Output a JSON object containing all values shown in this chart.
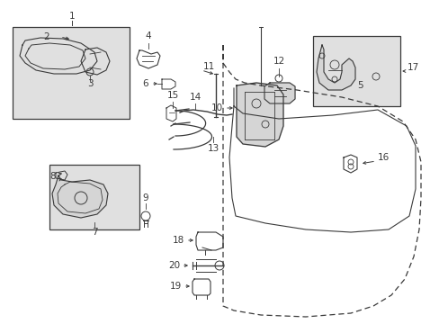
{
  "bg_color": "#ffffff",
  "lc": "#3a3a3a",
  "box_fill": "#e0e0e0",
  "fig_width": 4.89,
  "fig_height": 3.6,
  "dpi": 100,
  "label_fs": 7.5,
  "label_fs_sm": 7.0
}
